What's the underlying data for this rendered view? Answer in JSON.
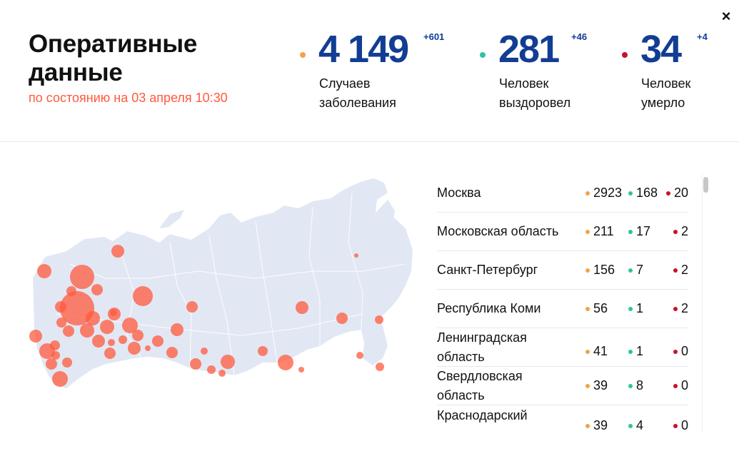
{
  "header": {
    "title_line1": "Оперативные",
    "title_line2": "данные",
    "subtitle": "по состоянию на 03 апреля 10:30",
    "close_label": "×"
  },
  "stats": {
    "cases": {
      "value": "4 149",
      "delta": "+601",
      "label_line1": "Случаев",
      "label_line2": "заболевания",
      "color": "#f5a14a"
    },
    "recovered": {
      "value": "281",
      "delta": "+46",
      "label_line1": "Человек",
      "label_line2": "выздоровел",
      "color": "#2ec4a0"
    },
    "deaths": {
      "value": "34",
      "delta": "+4",
      "label_line1": "Человек",
      "label_line2": "умерло",
      "color": "#c8102e"
    }
  },
  "colors": {
    "accent_number": "#123d93",
    "subtitle": "#ff5a3c",
    "map_land": "#e2e7f4",
    "map_bubble": "#ff5a3c"
  },
  "regions": [
    {
      "name_line1": "Москва",
      "name_line2": "",
      "cases": "2923",
      "recovered": "168",
      "deaths": "20"
    },
    {
      "name_line1": "Московская область",
      "name_line2": "",
      "cases": "211",
      "recovered": "17",
      "deaths": "2"
    },
    {
      "name_line1": "Санкт-Петербург",
      "name_line2": "",
      "cases": "156",
      "recovered": "7",
      "deaths": "2"
    },
    {
      "name_line1": "Республика Коми",
      "name_line2": "",
      "cases": "56",
      "recovered": "1",
      "deaths": "2"
    },
    {
      "name_line1": "Ленинградская",
      "name_line2": "область",
      "cases": "41",
      "recovered": "1",
      "deaths": "0"
    },
    {
      "name_line1": "Свердловская",
      "name_line2": "область",
      "cases": "39",
      "recovered": "8",
      "deaths": "0"
    },
    {
      "name_line1": "Краснодарский",
      "name_line2": "",
      "cases": "39",
      "recovered": "4",
      "deaths": "0"
    }
  ]
}
